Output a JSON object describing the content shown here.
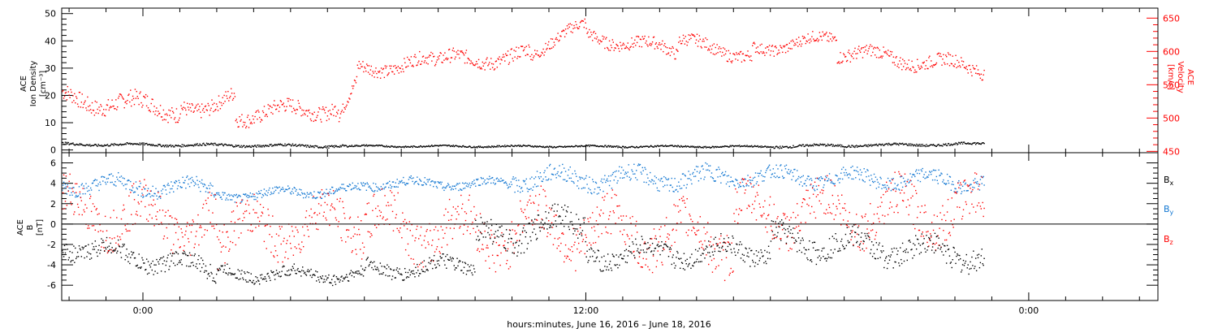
{
  "chart_data": [
    {
      "type": "scatter",
      "panel": "top",
      "ylabel_left": [
        "ACE",
        "Ion Density",
        "[cm⁻³]"
      ],
      "ylabel_right": [
        "ACE",
        "Velocity",
        "[km/s]"
      ],
      "ylim_left": [
        -1,
        52
      ],
      "ylim_right": [
        448,
        665
      ],
      "yticks_left": [
        0,
        10,
        20,
        30,
        40,
        50
      ],
      "yticks_right": [
        450,
        500,
        550,
        600,
        650
      ],
      "series": [
        {
          "axis": "left",
          "color": "#000000",
          "segments": [
            {
              "t0": -2.2,
              "t1": 5.5,
              "v0": 2.3,
              "v1": 1.6,
              "noise": 0.6
            },
            {
              "t0": 5.5,
              "t1": 17.0,
              "v0": 1.6,
              "v1": 1.4,
              "noise": 0.4
            },
            {
              "t0": 17.0,
              "t1": 22.8,
              "v0": 1.5,
              "v1": 2.4,
              "noise": 0.6
            }
          ]
        },
        {
          "axis": "right",
          "color": "#ff0000",
          "segments": [
            {
              "t0": -2.2,
              "t1": 1.0,
              "v0": 530,
              "v1": 515,
              "noise": 18
            },
            {
              "t0": 1.0,
              "t1": 2.5,
              "v0": 515,
              "v1": 530,
              "noise": 16
            },
            {
              "t0": 2.5,
              "t1": 5.3,
              "v0": 505,
              "v1": 518,
              "noise": 16
            },
            {
              "t0": 5.3,
              "t1": 5.8,
              "v0": 510,
              "v1": 560,
              "noise": 12
            },
            {
              "t0": 5.8,
              "t1": 8.0,
              "v0": 575,
              "v1": 585,
              "noise": 14
            },
            {
              "t0": 8.0,
              "t1": 10.5,
              "v0": 585,
              "v1": 595,
              "noise": 15
            },
            {
              "t0": 10.5,
              "t1": 12.0,
              "v0": 600,
              "v1": 640,
              "noise": 12
            },
            {
              "t0": 12.0,
              "t1": 14.5,
              "v0": 625,
              "v1": 600,
              "noise": 13
            },
            {
              "t0": 14.5,
              "t1": 16.5,
              "v0": 615,
              "v1": 595,
              "noise": 13
            },
            {
              "t0": 16.5,
              "t1": 18.8,
              "v0": 605,
              "v1": 620,
              "noise": 12
            },
            {
              "t0": 18.8,
              "t1": 22.8,
              "v0": 600,
              "v1": 575,
              "noise": 14
            }
          ]
        }
      ]
    },
    {
      "type": "scatter",
      "panel": "bottom",
      "ylabel_left": [
        "ACE",
        "B",
        "[nT]"
      ],
      "ylim": [
        -7.5,
        7
      ],
      "yticks": [
        -6,
        -4,
        -2,
        0,
        2,
        4,
        6
      ],
      "zero_line": true,
      "legend_position": "right",
      "series": [
        {
          "name": "Bx",
          "label_main": "B",
          "label_sub": "x",
          "color": "#000000",
          "segments": [
            {
              "t0": -2.2,
              "t1": 2.0,
              "v0": -2.0,
              "v1": -4.5,
              "noise": 1.2
            },
            {
              "t0": 2.0,
              "t1": 6.0,
              "v0": -4.8,
              "v1": -5.0,
              "noise": 0.8
            },
            {
              "t0": 6.0,
              "t1": 9.0,
              "v0": -4.5,
              "v1": -4.0,
              "noise": 1.0
            },
            {
              "t0": 9.0,
              "t1": 12.0,
              "v0": -1.5,
              "v1": 0.5,
              "noise": 1.8
            },
            {
              "t0": 12.0,
              "t1": 17.0,
              "v0": -3.0,
              "v1": -2.5,
              "noise": 1.4
            },
            {
              "t0": 17.0,
              "t1": 22.8,
              "v0": -1.5,
              "v1": -3.0,
              "noise": 1.6
            }
          ]
        },
        {
          "name": "By",
          "label_main": "B",
          "label_sub": "y",
          "color": "#1478d2",
          "segments": [
            {
              "t0": -2.2,
              "t1": 2.0,
              "v0": 4.0,
              "v1": 3.5,
              "noise": 1.0
            },
            {
              "t0": 2.0,
              "t1": 6.0,
              "v0": 2.8,
              "v1": 3.5,
              "noise": 0.6
            },
            {
              "t0": 6.0,
              "t1": 10.0,
              "v0": 4.0,
              "v1": 4.0,
              "noise": 0.6
            },
            {
              "t0": 10.0,
              "t1": 16.0,
              "v0": 4.5,
              "v1": 4.5,
              "noise": 1.2
            },
            {
              "t0": 16.0,
              "t1": 22.8,
              "v0": 4.8,
              "v1": 4.2,
              "noise": 1.0
            }
          ]
        },
        {
          "name": "Bz",
          "label_main": "B",
          "label_sub": "z",
          "color": "#ff0000",
          "segments": [
            {
              "t0": -2.2,
              "t1": 2.0,
              "v0": 1.5,
              "v1": 0.0,
              "noise": 3.0
            },
            {
              "t0": 2.0,
              "t1": 6.0,
              "v0": -1.0,
              "v1": 0.5,
              "noise": 3.0
            },
            {
              "t0": 6.0,
              "t1": 10.0,
              "v0": 0.0,
              "v1": -1.0,
              "noise": 3.2
            },
            {
              "t0": 10.0,
              "t1": 16.0,
              "v0": 0.0,
              "v1": -1.5,
              "noise": 3.2
            },
            {
              "t0": 16.0,
              "t1": 22.8,
              "v0": 1.0,
              "v1": 1.5,
              "noise": 3.0
            }
          ]
        }
      ]
    }
  ],
  "x_axis": {
    "range_hours": [
      -2.2,
      27.5
    ],
    "major_ticks": [
      {
        "hour": 0,
        "label": "0:00"
      },
      {
        "hour": 12,
        "label": "12:00"
      },
      {
        "hour": 24,
        "label": "0:00"
      }
    ],
    "xlabel": "hours:minutes, June 16, 2016 – June 18, 2016"
  }
}
